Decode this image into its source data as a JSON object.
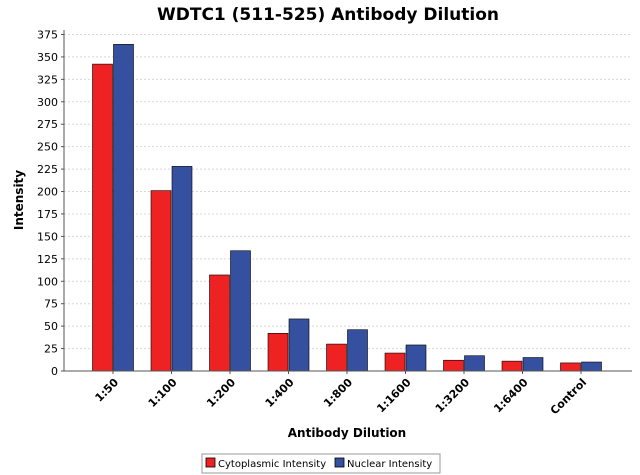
{
  "chart_data": {
    "type": "bar",
    "title": "WDTC1 (511-525) Antibody Dilution",
    "xlabel": "Antibody Dilution",
    "ylabel": "Intensity",
    "categories": [
      "1:50",
      "1:100",
      "1:200",
      "1:400",
      "1:800",
      "1:1600",
      "1:3200",
      "1:6400",
      "Control"
    ],
    "series": [
      {
        "name": "Cytoplasmic Intensity",
        "color": "#ee2222",
        "values": [
          342,
          201,
          107,
          42,
          30,
          20,
          12,
          11,
          9
        ]
      },
      {
        "name": "Nuclear Intensity",
        "color": "#3650a0",
        "values": [
          364,
          228,
          134,
          58,
          46,
          29,
          17,
          15,
          10
        ]
      }
    ],
    "ylim": [
      0,
      380
    ],
    "yticks": [
      0,
      25,
      50,
      75,
      100,
      125,
      150,
      175,
      200,
      225,
      250,
      275,
      300,
      325,
      350,
      375
    ],
    "grid": true,
    "legend_position": "bottom"
  }
}
